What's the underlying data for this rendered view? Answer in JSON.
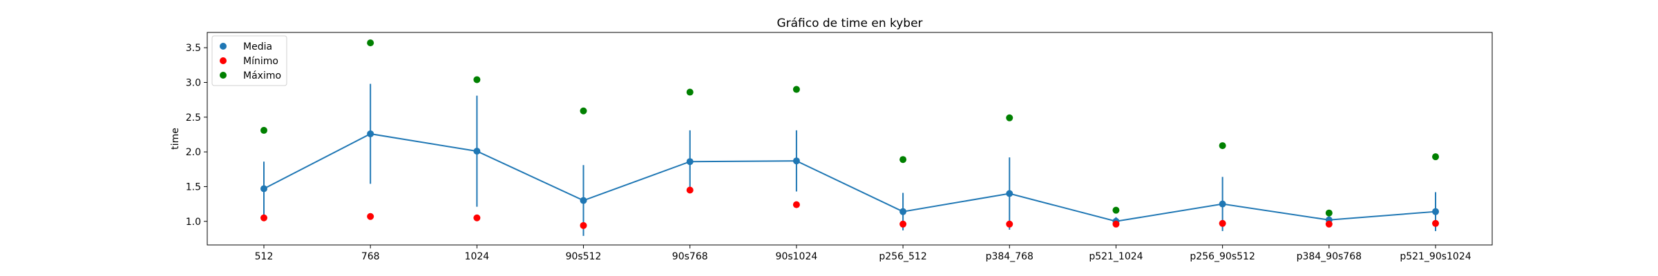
{
  "chart_data": {
    "type": "line",
    "title": "Gráfico de time en kyber",
    "xlabel": "",
    "ylabel": "time",
    "categories": [
      "512",
      "768",
      "1024",
      "90s512",
      "90s768",
      "90s1024",
      "p256_512",
      "p384_768",
      "p521_1024",
      "p256_90s512",
      "p384_90s768",
      "p521_90s1024"
    ],
    "ylim": [
      0.66,
      3.72
    ],
    "yticks": [
      1.0,
      1.5,
      2.0,
      2.5,
      3.0,
      3.5
    ],
    "ytick_labels": [
      "1.0",
      "1.5",
      "2.0",
      "2.5",
      "3.0",
      "3.5"
    ],
    "grid": false,
    "legend_position": "top-left",
    "series": [
      {
        "name": "Media",
        "color": "#1f77b4",
        "values": [
          1.47,
          2.26,
          2.01,
          1.3,
          1.86,
          1.87,
          1.14,
          1.4,
          1.0,
          1.25,
          1.02,
          1.14
        ],
        "error": [
          0.39,
          0.72,
          0.8,
          0.51,
          0.45,
          0.44,
          0.27,
          0.52,
          0.06,
          0.39,
          0.05,
          0.28
        ]
      },
      {
        "name": "Mínimo",
        "color": "#ff0000",
        "values": [
          1.05,
          1.07,
          1.05,
          0.94,
          1.45,
          1.24,
          0.96,
          0.96,
          0.96,
          0.97,
          0.96,
          0.97
        ]
      },
      {
        "name": "Máximo",
        "color": "#008000",
        "values": [
          2.31,
          3.57,
          3.04,
          2.59,
          2.86,
          2.9,
          1.89,
          2.49,
          1.16,
          2.09,
          1.12,
          1.93
        ]
      }
    ]
  }
}
